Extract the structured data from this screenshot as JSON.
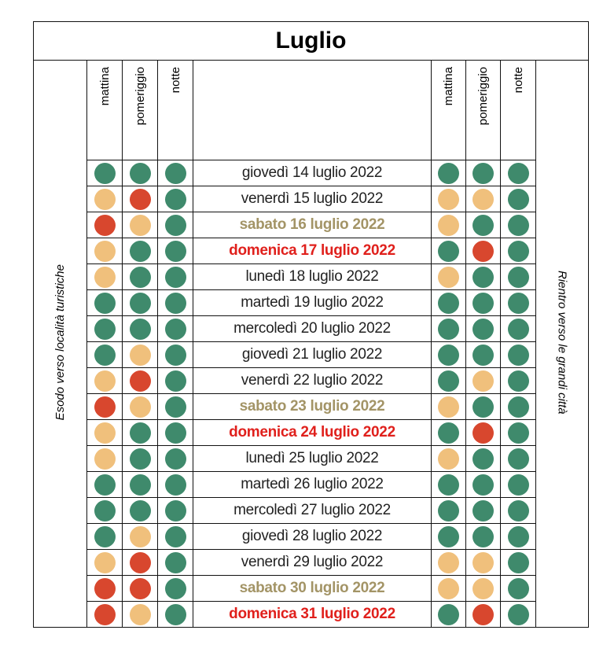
{
  "title": "Luglio",
  "left_label": "Esodo verso località turistiche",
  "right_label": "Rientro verso le grandi città",
  "left_headers": [
    "mattina",
    "pomeriggio",
    "notte"
  ],
  "right_headers": [
    "mattina",
    "pomeriggio",
    "notte"
  ],
  "rows": [
    {
      "date": "giovedì 14 luglio 2022",
      "color": "#222222",
      "bold": false,
      "left": [
        "#3f8a6c",
        "#3f8a6c",
        "#3f8a6c"
      ],
      "right": [
        "#3f8a6c",
        "#3f8a6c",
        "#3f8a6c"
      ]
    },
    {
      "date": "venerdì 15 luglio 2022",
      "color": "#222222",
      "bold": false,
      "left": [
        "#f0c07c",
        "#d8472e",
        "#3f8a6c"
      ],
      "right": [
        "#f0c07c",
        "#f0c07c",
        "#3f8a6c"
      ]
    },
    {
      "date": "sabato 16 luglio 2022",
      "color": "#a39466",
      "bold": true,
      "left": [
        "#d8472e",
        "#f0c07c",
        "#3f8a6c"
      ],
      "right": [
        "#f0c07c",
        "#3f8a6c",
        "#3f8a6c"
      ]
    },
    {
      "date": "domenica 17 luglio 2022",
      "color": "#e0201c",
      "bold": true,
      "left": [
        "#f0c07c",
        "#3f8a6c",
        "#3f8a6c"
      ],
      "right": [
        "#3f8a6c",
        "#d8472e",
        "#3f8a6c"
      ]
    },
    {
      "date": "lunedì 18 luglio 2022",
      "color": "#222222",
      "bold": false,
      "left": [
        "#f0c07c",
        "#3f8a6c",
        "#3f8a6c"
      ],
      "right": [
        "#f0c07c",
        "#3f8a6c",
        "#3f8a6c"
      ]
    },
    {
      "date": "martedì 19 luglio 2022",
      "color": "#222222",
      "bold": false,
      "left": [
        "#3f8a6c",
        "#3f8a6c",
        "#3f8a6c"
      ],
      "right": [
        "#3f8a6c",
        "#3f8a6c",
        "#3f8a6c"
      ]
    },
    {
      "date": "mercoledì 20 luglio 2022",
      "color": "#222222",
      "bold": false,
      "left": [
        "#3f8a6c",
        "#3f8a6c",
        "#3f8a6c"
      ],
      "right": [
        "#3f8a6c",
        "#3f8a6c",
        "#3f8a6c"
      ]
    },
    {
      "date": "giovedì 21 luglio 2022",
      "color": "#222222",
      "bold": false,
      "left": [
        "#3f8a6c",
        "#f0c07c",
        "#3f8a6c"
      ],
      "right": [
        "#3f8a6c",
        "#3f8a6c",
        "#3f8a6c"
      ]
    },
    {
      "date": "venerdì 22 luglio 2022",
      "color": "#222222",
      "bold": false,
      "left": [
        "#f0c07c",
        "#d8472e",
        "#3f8a6c"
      ],
      "right": [
        "#3f8a6c",
        "#f0c07c",
        "#3f8a6c"
      ]
    },
    {
      "date": "sabato 23 luglio 2022",
      "color": "#a39466",
      "bold": true,
      "left": [
        "#d8472e",
        "#f0c07c",
        "#3f8a6c"
      ],
      "right": [
        "#f0c07c",
        "#3f8a6c",
        "#3f8a6c"
      ]
    },
    {
      "date": "domenica 24 luglio 2022",
      "color": "#e0201c",
      "bold": true,
      "left": [
        "#f0c07c",
        "#3f8a6c",
        "#3f8a6c"
      ],
      "right": [
        "#3f8a6c",
        "#d8472e",
        "#3f8a6c"
      ]
    },
    {
      "date": "lunedì 25 luglio 2022",
      "color": "#222222",
      "bold": false,
      "left": [
        "#f0c07c",
        "#3f8a6c",
        "#3f8a6c"
      ],
      "right": [
        "#f0c07c",
        "#3f8a6c",
        "#3f8a6c"
      ]
    },
    {
      "date": "martedì 26 luglio 2022",
      "color": "#222222",
      "bold": false,
      "left": [
        "#3f8a6c",
        "#3f8a6c",
        "#3f8a6c"
      ],
      "right": [
        "#3f8a6c",
        "#3f8a6c",
        "#3f8a6c"
      ]
    },
    {
      "date": "mercoledì 27 luglio 2022",
      "color": "#222222",
      "bold": false,
      "left": [
        "#3f8a6c",
        "#3f8a6c",
        "#3f8a6c"
      ],
      "right": [
        "#3f8a6c",
        "#3f8a6c",
        "#3f8a6c"
      ]
    },
    {
      "date": "giovedì 28 luglio 2022",
      "color": "#222222",
      "bold": false,
      "left": [
        "#3f8a6c",
        "#f0c07c",
        "#3f8a6c"
      ],
      "right": [
        "#3f8a6c",
        "#3f8a6c",
        "#3f8a6c"
      ]
    },
    {
      "date": "venerdì 29 luglio 2022",
      "color": "#222222",
      "bold": false,
      "left": [
        "#f0c07c",
        "#d8472e",
        "#3f8a6c"
      ],
      "right": [
        "#f0c07c",
        "#f0c07c",
        "#3f8a6c"
      ]
    },
    {
      "date": "sabato 30 luglio 2022",
      "color": "#a39466",
      "bold": true,
      "left": [
        "#d8472e",
        "#d8472e",
        "#3f8a6c"
      ],
      "right": [
        "#f0c07c",
        "#f0c07c",
        "#3f8a6c"
      ]
    },
    {
      "date": "domenica 31 luglio 2022",
      "color": "#e0201c",
      "bold": true,
      "left": [
        "#d8472e",
        "#f0c07c",
        "#3f8a6c"
      ],
      "right": [
        "#3f8a6c",
        "#d8472e",
        "#3f8a6c"
      ]
    }
  ]
}
